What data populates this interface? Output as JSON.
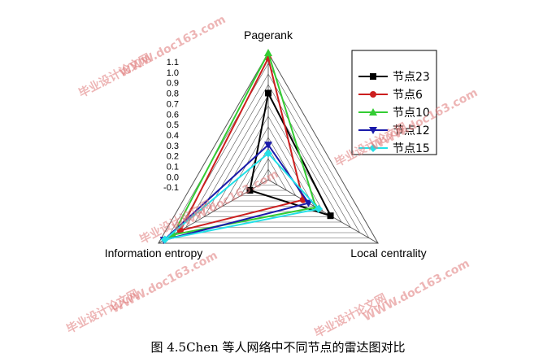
{
  "chart_data": {
    "type": "radar",
    "axes": [
      "Pagerank",
      "Local centrality",
      "Information entropy"
    ],
    "rlim": [
      -0.1,
      1.1
    ],
    "ticks": [
      "1.1",
      "1.0",
      "0.9",
      "0.8",
      "0.7",
      "0.6",
      "0.5",
      "0.4",
      "0.3",
      "0.2",
      "0.1",
      "0.0",
      "-0.1"
    ],
    "grid": true,
    "legend_position": "top-right",
    "series": [
      {
        "name": "节点23",
        "color": "#000000",
        "marker": "square",
        "values": [
          0.72,
          0.58,
          0.1
        ]
      },
      {
        "name": "节点6",
        "color": "#cc1f1f",
        "marker": "circle",
        "values": [
          1.05,
          0.28,
          0.86
        ]
      },
      {
        "name": "节点10",
        "color": "#33cc33",
        "marker": "triangle-up",
        "values": [
          1.1,
          0.42,
          0.94
        ]
      },
      {
        "name": "节点12",
        "color": "#1a1aaa",
        "marker": "triangle-down",
        "values": [
          0.23,
          0.34,
          1.04
        ]
      },
      {
        "name": "节点15",
        "color": "#22e0e8",
        "marker": "diamond",
        "values": [
          0.15,
          0.45,
          1.03
        ]
      }
    ]
  },
  "caption": "图 4.5Chen 等人网络中不同节点的雷达图对比",
  "watermarks": [
    "毕业设计论文网",
    "WWW.doc163.com",
    "毕业设计论文网",
    "WWW.doc163.com",
    "毕业设计论文网",
    "WWW.doc163.com",
    "毕业设计论文网",
    "WWW.doc163.com",
    "毕业设计论文网",
    "WWW.doc163.com"
  ]
}
